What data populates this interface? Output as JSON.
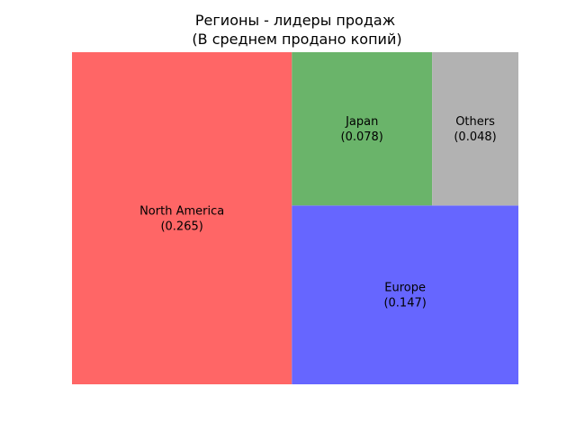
{
  "chart_data": {
    "type": "treemap",
    "title": "Регионы - лидеры продаж",
    "subtitle": "(В среднем продано копий)",
    "items": [
      {
        "label": "North America",
        "value": 0.265,
        "display": "(0.265)",
        "color": "#ff6666"
      },
      {
        "label": "Europe",
        "value": 0.147,
        "display": " (0.147)",
        "color": "#6666ff"
      },
      {
        "label": "Japan",
        "value": 0.078,
        "display": "(0.078)",
        "color": "#6ab46a"
      },
      {
        "label": "Others",
        "value": 0.048,
        "display": " (0.048)",
        "color": "#b2b2b2"
      }
    ],
    "axes": "off"
  }
}
